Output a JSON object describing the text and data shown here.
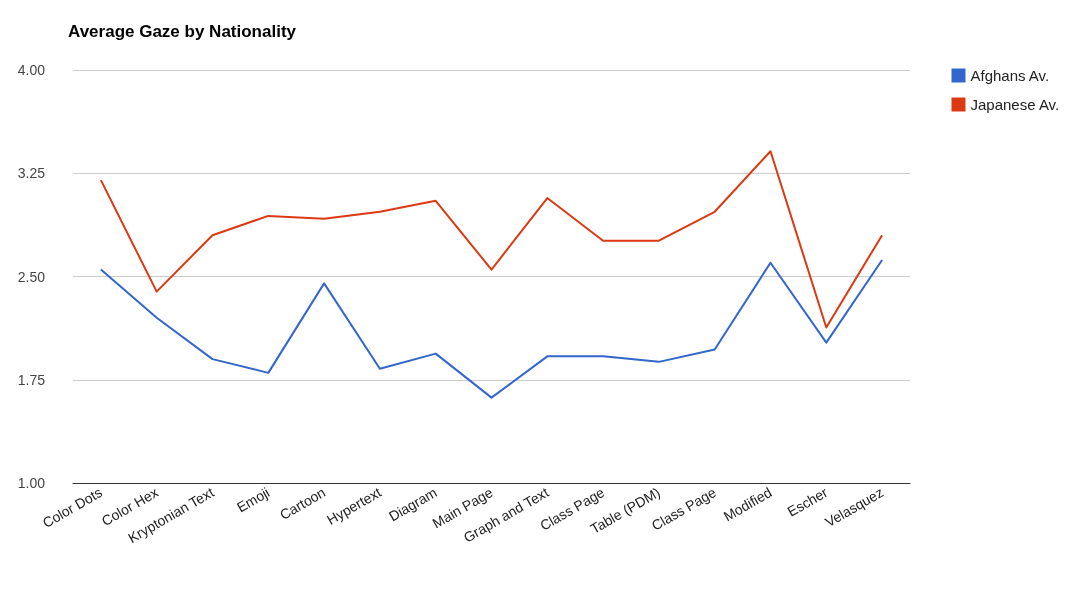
{
  "chart_data": {
    "type": "line",
    "title": "Average Gaze by Nationality",
    "categories": [
      "Color Dots",
      "Color Hex",
      "Kryptonian Text",
      "Emoji",
      "Cartoon",
      "Hypertext",
      "Diagram",
      "Main Page",
      "Graph and Text",
      "Class Page",
      "Table (PDM)",
      "Class Page",
      "Modified",
      "Escher",
      "Velasquez"
    ],
    "series": [
      {
        "name": "Afghans Av.",
        "color": "#3366cc",
        "values": [
          2.55,
          2.2,
          1.9,
          1.8,
          2.45,
          1.83,
          1.94,
          1.62,
          1.92,
          1.92,
          1.88,
          1.97,
          2.6,
          2.02,
          2.62
        ]
      },
      {
        "name": "Japanese Av.",
        "color": "#dc3912",
        "values": [
          3.2,
          2.39,
          2.8,
          2.94,
          2.92,
          2.97,
          3.05,
          2.55,
          3.07,
          2.76,
          2.76,
          2.97,
          3.41,
          2.13,
          2.8
        ]
      }
    ],
    "ylim": [
      1,
      4
    ],
    "yticks": [
      {
        "value": 1,
        "label": "1.00"
      },
      {
        "value": 1.75,
        "label": "1.75"
      },
      {
        "value": 2.5,
        "label": "2.50"
      },
      {
        "value": 3.25,
        "label": "3.25"
      },
      {
        "value": 4,
        "label": "4.00"
      }
    ],
    "grid": "y",
    "legend": "top right",
    "marker": "none",
    "line_style": "solid"
  }
}
